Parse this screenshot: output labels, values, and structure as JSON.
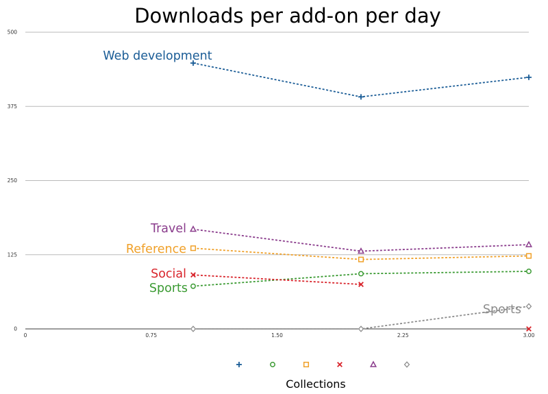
{
  "chart_data": {
    "type": "line",
    "title": "Downloads per add-on per day",
    "xlabel": "Collections",
    "ylabel": "",
    "xlim": [
      0,
      3.0
    ],
    "ylim": [
      0,
      500
    ],
    "xticks": [
      0,
      0.75,
      1.5,
      2.25,
      3.0
    ],
    "xtick_labels": [
      "0",
      "0.75",
      "1.50",
      "2.25",
      "3.00"
    ],
    "yticks": [
      0,
      125,
      250,
      375,
      500
    ],
    "ytick_labels": [
      "0",
      "125",
      "250",
      "375",
      "500"
    ],
    "grid": true,
    "series": [
      {
        "id": "webdev",
        "name": "Web development",
        "color": "#1a5c96",
        "marker": "plus",
        "x": [
          1,
          2,
          3
        ],
        "y": [
          448,
          391,
          424
        ]
      },
      {
        "id": "sports-green",
        "name": "Sports",
        "color": "#3a9a32",
        "marker": "circle",
        "x": [
          1,
          2,
          3
        ],
        "y": [
          72,
          93,
          97
        ]
      },
      {
        "id": "reference",
        "name": "Reference",
        "color": "#f0a028",
        "marker": "square",
        "x": [
          1,
          2,
          3
        ],
        "y": [
          136,
          117,
          123
        ]
      },
      {
        "id": "social",
        "name": "Social",
        "color": "#d8232a",
        "marker": "x",
        "x": [
          1,
          2,
          3
        ],
        "y": [
          91,
          75,
          0
        ]
      },
      {
        "id": "travel",
        "name": "Travel",
        "color": "#8a3c8c",
        "marker": "triangle",
        "x": [
          1,
          2,
          3
        ],
        "y": [
          168,
          131,
          142
        ]
      },
      {
        "id": "sports-gray",
        "name": "Sports",
        "color": "#8c8c8c",
        "marker": "diamond",
        "x": [
          1,
          2,
          3
        ],
        "y": [
          0,
          0,
          38
        ]
      }
    ]
  }
}
